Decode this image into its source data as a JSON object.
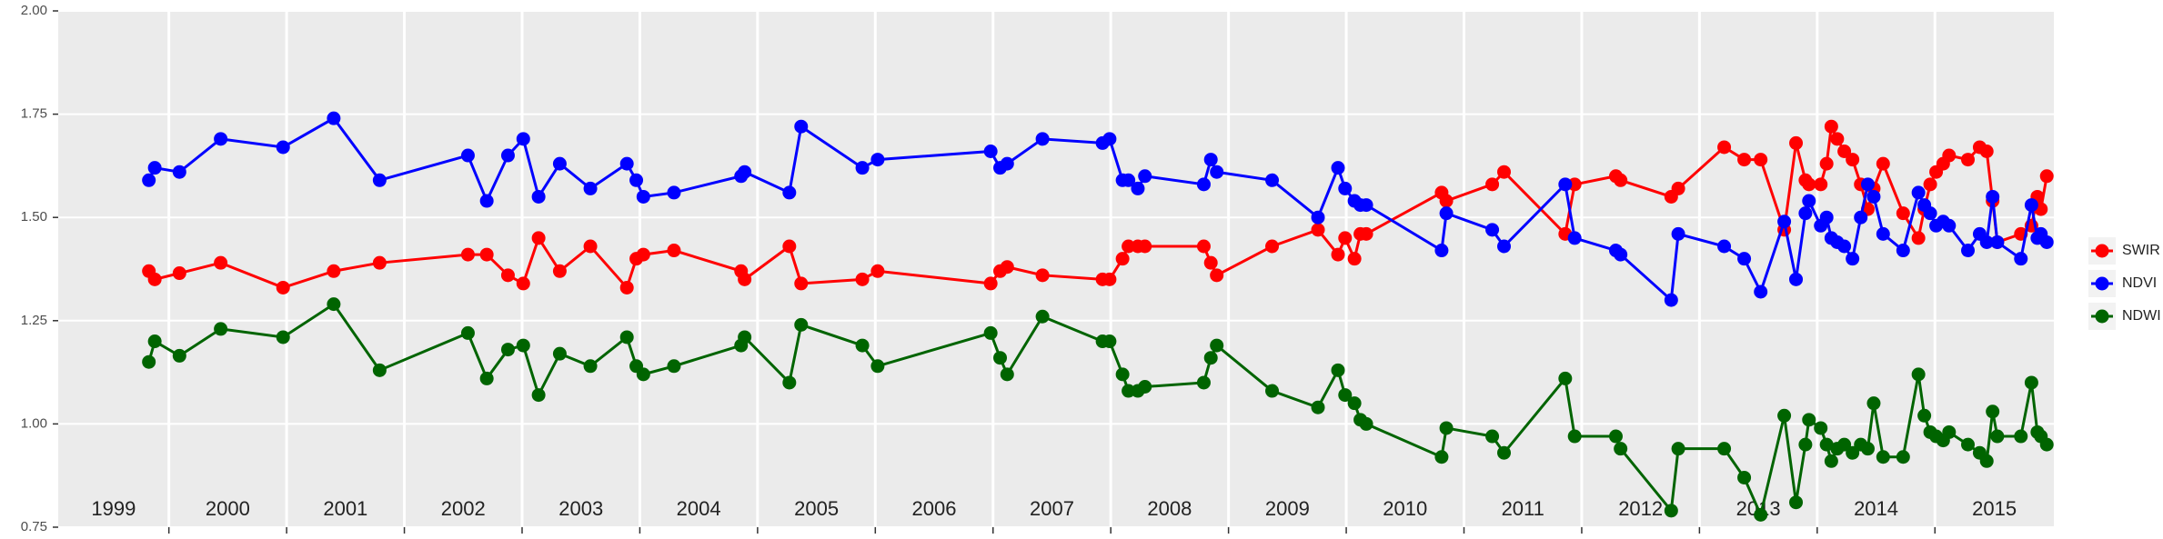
{
  "chart_data": {
    "type": "line",
    "x": [
      1999.83,
      1999.88,
      2000.09,
      2000.44,
      2000.97,
      2001.4,
      2001.79,
      2002.54,
      2002.7,
      2002.88,
      2003.01,
      2003.14,
      2003.32,
      2003.58,
      2003.89,
      2003.97,
      2004.03,
      2004.29,
      2004.86,
      2004.89,
      2005.27,
      2005.37,
      2005.89,
      2006.02,
      2006.98,
      2007.06,
      2007.12,
      2007.42,
      2007.93,
      2007.99,
      2008.1,
      2008.15,
      2008.23,
      2008.29,
      2008.79,
      2008.85,
      2008.9,
      2009.37,
      2009.76,
      2009.93,
      2009.99,
      2010.07,
      2010.12,
      2010.17,
      2010.81,
      2010.85,
      2011.24,
      2011.34,
      2011.86,
      2011.94,
      2012.29,
      2012.33,
      2012.76,
      2012.82,
      2013.21,
      2013.38,
      2013.52,
      2013.72,
      2013.82,
      2013.9,
      2013.93,
      2014.03,
      2014.08,
      2014.12,
      2014.17,
      2014.23,
      2014.3,
      2014.37,
      2014.43,
      2014.48,
      2014.56,
      2014.73,
      2014.86,
      2014.91,
      2014.96,
      2015.01,
      2015.07,
      2015.12,
      2015.28,
      2015.38,
      2015.44,
      2015.49,
      2015.53,
      2015.73,
      2015.82,
      2015.87,
      2015.9,
      2015.95
    ],
    "series": [
      {
        "name": "SWIR",
        "color": "#ff0000",
        "values": [
          1.37,
          1.35,
          1.365,
          1.39,
          1.33,
          1.37,
          1.39,
          1.41,
          1.41,
          1.36,
          1.34,
          1.45,
          1.37,
          1.43,
          1.33,
          1.4,
          1.41,
          1.42,
          1.37,
          1.35,
          1.43,
          1.34,
          1.35,
          1.37,
          1.34,
          1.37,
          1.38,
          1.36,
          1.35,
          1.35,
          1.4,
          1.43,
          1.43,
          1.43,
          1.43,
          1.39,
          1.36,
          1.43,
          1.47,
          1.41,
          1.45,
          1.4,
          1.46,
          1.46,
          1.56,
          1.54,
          1.58,
          1.61,
          1.46,
          1.58,
          1.6,
          1.59,
          1.55,
          1.57,
          1.67,
          1.64,
          1.64,
          1.47,
          1.68,
          1.59,
          1.58,
          1.58,
          1.63,
          1.72,
          1.69,
          1.66,
          1.64,
          1.58,
          1.52,
          1.57,
          1.63,
          1.51,
          1.45,
          1.52,
          1.58,
          1.61,
          1.63,
          1.65,
          1.64,
          1.67,
          1.66,
          1.54,
          1.44,
          1.46,
          1.48,
          1.55,
          1.52,
          1.6
        ]
      },
      {
        "name": "NDVI",
        "color": "#0000ff",
        "values": [
          1.59,
          1.62,
          1.61,
          1.69,
          1.67,
          1.74,
          1.59,
          1.65,
          1.54,
          1.65,
          1.69,
          1.55,
          1.63,
          1.57,
          1.63,
          1.59,
          1.55,
          1.56,
          1.6,
          1.61,
          1.56,
          1.72,
          1.62,
          1.64,
          1.66,
          1.62,
          1.63,
          1.69,
          1.68,
          1.69,
          1.59,
          1.59,
          1.57,
          1.6,
          1.58,
          1.64,
          1.61,
          1.59,
          1.5,
          1.62,
          1.57,
          1.54,
          1.53,
          1.53,
          1.42,
          1.51,
          1.47,
          1.43,
          1.58,
          1.45,
          1.42,
          1.41,
          1.3,
          1.46,
          1.43,
          1.4,
          1.32,
          1.49,
          1.35,
          1.51,
          1.54,
          1.48,
          1.5,
          1.45,
          1.44,
          1.43,
          1.4,
          1.5,
          1.58,
          1.55,
          1.46,
          1.42,
          1.56,
          1.53,
          1.51,
          1.48,
          1.49,
          1.48,
          1.42,
          1.46,
          1.44,
          1.55,
          1.44,
          1.4,
          1.53,
          1.45,
          1.46,
          1.44
        ]
      },
      {
        "name": "NDWI",
        "color": "#006400",
        "values": [
          1.15,
          1.2,
          1.165,
          1.23,
          1.21,
          1.29,
          1.13,
          1.22,
          1.11,
          1.18,
          1.19,
          1.07,
          1.17,
          1.14,
          1.21,
          1.14,
          1.12,
          1.14,
          1.19,
          1.21,
          1.1,
          1.24,
          1.19,
          1.14,
          1.22,
          1.16,
          1.12,
          1.26,
          1.2,
          1.2,
          1.12,
          1.08,
          1.08,
          1.09,
          1.1,
          1.16,
          1.19,
          1.08,
          1.04,
          1.13,
          1.07,
          1.05,
          1.01,
          1.0,
          0.92,
          0.99,
          0.97,
          0.93,
          1.11,
          0.97,
          0.97,
          0.94,
          0.79,
          0.94,
          0.94,
          0.87,
          0.78,
          1.02,
          0.81,
          0.95,
          1.01,
          0.99,
          0.95,
          0.91,
          0.94,
          0.95,
          0.93,
          0.95,
          0.94,
          1.05,
          0.92,
          0.92,
          1.12,
          1.02,
          0.98,
          0.97,
          0.96,
          0.98,
          0.95,
          0.93,
          0.91,
          1.03,
          0.97,
          0.97,
          1.1,
          0.98,
          0.97,
          0.95
        ]
      }
    ],
    "xlim": [
      1999.06,
      2016.01
    ],
    "xticks": [
      2000,
      2001,
      2002,
      2003,
      2004,
      2005,
      2006,
      2007,
      2008,
      2009,
      2010,
      2011,
      2012,
      2013,
      2014,
      2015
    ],
    "year_labels": [
      "1999",
      "2000",
      "2001",
      "2002",
      "2003",
      "2004",
      "2005",
      "2006",
      "2007",
      "2008",
      "2009",
      "2010",
      "2011",
      "2012",
      "2013",
      "2014",
      "2015"
    ],
    "ylim": [
      0.75,
      2.0
    ],
    "yticks": [
      {
        "value": 0.75,
        "label": "0.75"
      },
      {
        "value": 1.0,
        "label": "1.00"
      },
      {
        "value": 1.25,
        "label": "1.25"
      },
      {
        "value": 1.5,
        "label": "1.50"
      },
      {
        "value": 1.75,
        "label": "1.75"
      },
      {
        "value": 2.0,
        "label": "2.00"
      }
    ],
    "grid": true,
    "legend": "right"
  }
}
